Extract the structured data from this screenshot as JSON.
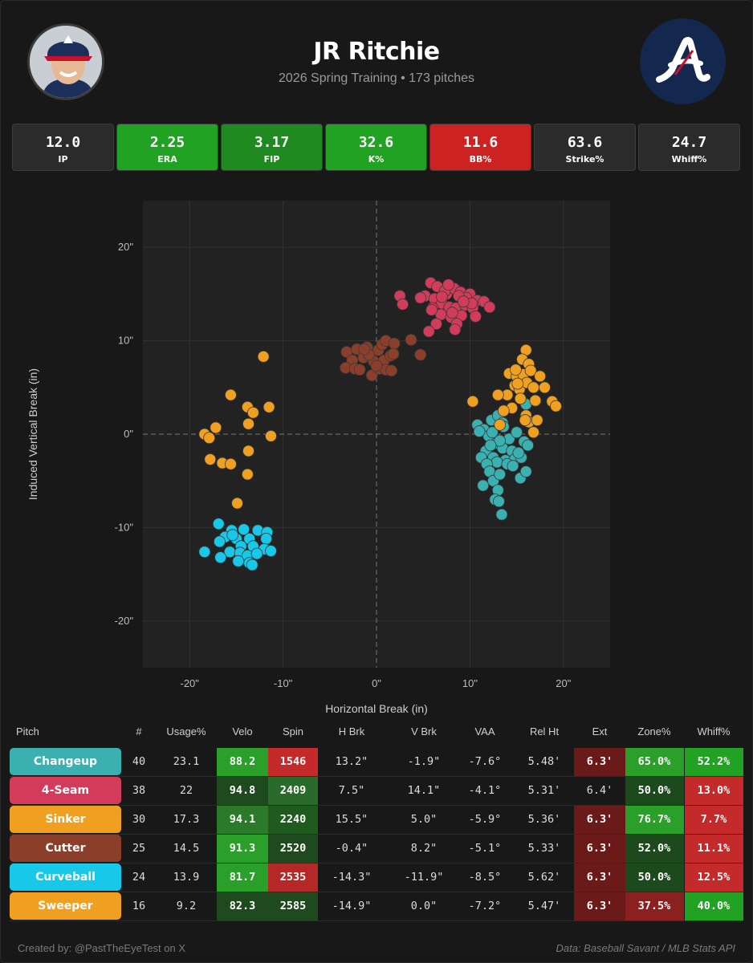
{
  "header": {
    "player_name": "JR Ritchie",
    "subtitle": "2026 Spring Training • 173 pitches"
  },
  "stats": [
    {
      "value": "12.0",
      "label": "IP",
      "color": "#2b2b2b"
    },
    {
      "value": "2.25",
      "label": "ERA",
      "color": "#22a222"
    },
    {
      "value": "3.17",
      "label": "FIP",
      "color": "#1f8a1f"
    },
    {
      "value": "32.6",
      "label": "K%",
      "color": "#22a222"
    },
    {
      "value": "11.6",
      "label": "BB%",
      "color": "#cc2222"
    },
    {
      "value": "63.6",
      "label": "Strike%",
      "color": "#2b2b2b"
    },
    {
      "value": "24.7",
      "label": "Whiff%",
      "color": "#2b2b2b"
    }
  ],
  "chart_data": {
    "type": "scatter",
    "title": "",
    "xlabel": "Horizontal Break (in)",
    "ylabel": "Induced Vertical Break (in)",
    "xlim": [
      -25,
      25
    ],
    "ylim": [
      -25,
      25
    ],
    "xticks": [
      "-20\"",
      "-10\"",
      "0\"",
      "10\"",
      "20\""
    ],
    "yticks": [
      "20\"",
      "10\"",
      "0\"",
      "-10\"",
      "-20\""
    ],
    "grid": true,
    "series": [
      {
        "pitch": "Changeup",
        "color": "#3ab0b0",
        "points": [
          [
            10.8,
            1.0
          ],
          [
            11.5,
            0.5
          ],
          [
            12.3,
            1.5
          ],
          [
            13.0,
            2.0
          ],
          [
            13.5,
            1.2
          ],
          [
            12.0,
            -0.2
          ],
          [
            12.8,
            -1.0
          ],
          [
            11.7,
            -1.8
          ],
          [
            12.5,
            -2.5
          ],
          [
            13.5,
            -1.5
          ],
          [
            14.2,
            -0.5
          ],
          [
            15.0,
            0.2
          ],
          [
            15.8,
            -0.8
          ],
          [
            16.2,
            -1.2
          ],
          [
            14.5,
            -1.8
          ],
          [
            13.8,
            -2.8
          ],
          [
            12.9,
            -3.0
          ],
          [
            11.2,
            -2.5
          ],
          [
            11.8,
            -3.2
          ],
          [
            14.8,
            -2.7
          ],
          [
            15.5,
            -2.5
          ],
          [
            13.2,
            -0.7
          ],
          [
            12.1,
            -4.0
          ],
          [
            11.4,
            -5.5
          ],
          [
            12.5,
            -5.0
          ],
          [
            13.0,
            -6.0
          ],
          [
            12.7,
            -7.0
          ],
          [
            13.1,
            -7.2
          ],
          [
            13.4,
            -8.6
          ],
          [
            15.4,
            -4.7
          ],
          [
            16.0,
            -4.0
          ],
          [
            16.0,
            3.2
          ],
          [
            14.0,
            -3.2
          ],
          [
            12.2,
            -1.2
          ],
          [
            11.0,
            0.3
          ],
          [
            15.2,
            -2.0
          ],
          [
            13.6,
            0.8
          ],
          [
            12.4,
            0.2
          ],
          [
            14.6,
            -3.4
          ],
          [
            13.2,
            -4.3
          ]
        ]
      },
      {
        "pitch": "4-Seam",
        "color": "#d23c5a",
        "points": [
          [
            5.8,
            16.2
          ],
          [
            6.5,
            15.8
          ],
          [
            7.5,
            15.0
          ],
          [
            8.3,
            15.6
          ],
          [
            9.0,
            15.2
          ],
          [
            10.0,
            15.0
          ],
          [
            10.8,
            14.3
          ],
          [
            11.5,
            14.2
          ],
          [
            12.1,
            13.6
          ],
          [
            5.2,
            14.8
          ],
          [
            6.2,
            14.5
          ],
          [
            7.0,
            14.0
          ],
          [
            7.8,
            13.6
          ],
          [
            8.5,
            13.5
          ],
          [
            9.5,
            13.8
          ],
          [
            10.3,
            13.5
          ],
          [
            4.7,
            14.6
          ],
          [
            6.0,
            13.5
          ],
          [
            6.9,
            12.8
          ],
          [
            8.0,
            12.5
          ],
          [
            9.1,
            12.7
          ],
          [
            10.6,
            12.6
          ],
          [
            8.6,
            11.8
          ],
          [
            6.4,
            11.8
          ],
          [
            5.6,
            11.0
          ],
          [
            2.5,
            14.8
          ],
          [
            2.8,
            13.9
          ],
          [
            4.7,
            8.5
          ],
          [
            8.4,
            11.2
          ],
          [
            9.6,
            14.6
          ],
          [
            7.3,
            15.3
          ],
          [
            5.9,
            13.3
          ],
          [
            7.7,
            16.0
          ],
          [
            8.8,
            14.8
          ],
          [
            10.2,
            14.0
          ],
          [
            7.0,
            14.7
          ],
          [
            9.3,
            14.2
          ],
          [
            8.1,
            13.0
          ]
        ]
      },
      {
        "pitch": "Sinker",
        "color": "#f0a020",
        "points": [
          [
            16.0,
            9.0
          ],
          [
            15.6,
            8.0
          ],
          [
            16.3,
            7.5
          ],
          [
            14.2,
            6.5
          ],
          [
            15.0,
            6.2
          ],
          [
            15.7,
            6.4
          ],
          [
            16.5,
            6.8
          ],
          [
            17.5,
            6.2
          ],
          [
            14.8,
            5.2
          ],
          [
            15.3,
            4.8
          ],
          [
            16.1,
            5.5
          ],
          [
            16.8,
            5.0
          ],
          [
            18.0,
            5.0
          ],
          [
            14.0,
            4.2
          ],
          [
            15.4,
            3.8
          ],
          [
            13.0,
            4.2
          ],
          [
            14.5,
            2.8
          ],
          [
            16.0,
            2.0
          ],
          [
            16.3,
            1.3
          ],
          [
            17.2,
            1.5
          ],
          [
            18.8,
            3.5
          ],
          [
            19.2,
            3.0
          ],
          [
            10.3,
            3.5
          ],
          [
            16.8,
            0.2
          ],
          [
            13.2,
            1.0
          ],
          [
            15.1,
            5.4
          ],
          [
            14.9,
            6.9
          ],
          [
            13.6,
            2.5
          ],
          [
            15.9,
            1.5
          ],
          [
            17.0,
            3.6
          ]
        ]
      },
      {
        "pitch": "Cutter",
        "color": "#8b3f2b",
        "points": [
          [
            -3.2,
            8.8
          ],
          [
            -2.1,
            9.1
          ],
          [
            -1.0,
            9.3
          ],
          [
            0.2,
            9.0
          ],
          [
            0.6,
            9.6
          ],
          [
            1.0,
            10.0
          ],
          [
            1.9,
            9.7
          ],
          [
            -2.6,
            7.9
          ],
          [
            -1.4,
            8.2
          ],
          [
            -0.3,
            7.8
          ],
          [
            0.8,
            7.9
          ],
          [
            1.5,
            8.4
          ],
          [
            1.8,
            8.6
          ],
          [
            -3.3,
            7.1
          ],
          [
            -2.3,
            7.0
          ],
          [
            -0.5,
            6.3
          ],
          [
            0.3,
            7.0
          ],
          [
            1.0,
            6.9
          ],
          [
            1.6,
            6.8
          ],
          [
            3.7,
            10.1
          ],
          [
            4.7,
            8.5
          ],
          [
            -1.8,
            6.9
          ],
          [
            0.0,
            7.3
          ],
          [
            -0.8,
            8.5
          ],
          [
            -1.3,
            9.1
          ]
        ]
      },
      {
        "pitch": "Curveball",
        "color": "#18c8e8",
        "points": [
          [
            -16.9,
            -9.6
          ],
          [
            -15.5,
            -10.3
          ],
          [
            -14.2,
            -10.2
          ],
          [
            -12.7,
            -10.3
          ],
          [
            -11.7,
            -10.5
          ],
          [
            -16.2,
            -11.0
          ],
          [
            -15.0,
            -11.2
          ],
          [
            -13.6,
            -11.2
          ],
          [
            -11.8,
            -11.2
          ],
          [
            -16.8,
            -11.5
          ],
          [
            -14.5,
            -12.0
          ],
          [
            -13.2,
            -12.0
          ],
          [
            -12.0,
            -12.3
          ],
          [
            -11.3,
            -12.5
          ],
          [
            -18.4,
            -12.6
          ],
          [
            -15.7,
            -12.6
          ],
          [
            -14.6,
            -12.7
          ],
          [
            -13.8,
            -13.0
          ],
          [
            -12.8,
            -12.8
          ],
          [
            -16.7,
            -13.2
          ],
          [
            -14.8,
            -13.6
          ],
          [
            -13.6,
            -13.8
          ],
          [
            -13.3,
            -14.0
          ],
          [
            -15.4,
            -10.8
          ]
        ]
      },
      {
        "pitch": "Sweeper",
        "color": "#f0a020",
        "points": [
          [
            -12.1,
            8.3
          ],
          [
            -15.6,
            4.2
          ],
          [
            -13.8,
            2.9
          ],
          [
            -11.5,
            2.9
          ],
          [
            -13.2,
            2.3
          ],
          [
            -13.7,
            1.1
          ],
          [
            -17.2,
            0.7
          ],
          [
            -18.4,
            0.0
          ],
          [
            -17.9,
            -0.4
          ],
          [
            -11.3,
            -0.2
          ],
          [
            -13.7,
            -1.8
          ],
          [
            -17.8,
            -2.7
          ],
          [
            -16.5,
            -3.1
          ],
          [
            -15.6,
            -3.2
          ],
          [
            -13.8,
            -4.3
          ],
          [
            -14.9,
            -7.4
          ]
        ]
      }
    ]
  },
  "table": {
    "headers": [
      "Pitch",
      "#",
      "Usage%",
      "Velo",
      "Spin",
      "H Brk",
      "V Brk",
      "VAA",
      "Rel Ht",
      "Ext",
      "Zone%",
      "Whiff%"
    ],
    "rows": [
      {
        "pitch": "Changeup",
        "color": "#3ab0b0",
        "count": "40",
        "usage": "23.1",
        "velo": "88.2",
        "spin": "1546",
        "hbrk": "13.2\"",
        "vbrk": "-1.9\"",
        "vaa": "-7.6°",
        "relht": "5.48'",
        "ext": "6.3'",
        "zone": "65.0%",
        "whiff": "52.2%",
        "velo_bg": "#2aa02a",
        "spin_bg": "#c42a2a",
        "ext_bg": "#6b1a1a",
        "zone_bg": "#2aa02a",
        "whiff_bg": "#22a222"
      },
      {
        "pitch": "4-Seam",
        "color": "#d23c5a",
        "count": "38",
        "usage": "22",
        "velo": "94.8",
        "spin": "2409",
        "hbrk": "7.5\"",
        "vbrk": "14.1\"",
        "vaa": "-4.1°",
        "relht": "5.31'",
        "ext": "6.4'",
        "zone": "50.0%",
        "whiff": "13.0%",
        "velo_bg": "#1f4a1f",
        "spin_bg": "#2a6a2a",
        "ext_bg": "",
        "zone_bg": "#1c4a1c",
        "whiff_bg": "#c42a2a"
      },
      {
        "pitch": "Sinker",
        "color": "#f0a020",
        "count": "30",
        "usage": "17.3",
        "velo": "94.1",
        "spin": "2240",
        "hbrk": "15.5\"",
        "vbrk": "5.0\"",
        "vaa": "-5.9°",
        "relht": "5.36'",
        "ext": "6.3'",
        "zone": "76.7%",
        "whiff": "7.7%",
        "velo_bg": "#2a7a2a",
        "spin_bg": "#1f5a1f",
        "ext_bg": "#6b1a1a",
        "zone_bg": "#2aa02a",
        "whiff_bg": "#c42a2a"
      },
      {
        "pitch": "Cutter",
        "color": "#8b3f2b",
        "count": "25",
        "usage": "14.5",
        "velo": "91.3",
        "spin": "2520",
        "hbrk": "-0.4\"",
        "vbrk": "8.2\"",
        "vaa": "-5.1°",
        "relht": "5.33'",
        "ext": "6.3'",
        "zone": "52.0%",
        "whiff": "11.1%",
        "velo_bg": "#2aa02a",
        "spin_bg": "#1f4a1f",
        "ext_bg": "#6b1a1a",
        "zone_bg": "#1c4a1c",
        "whiff_bg": "#c42a2a"
      },
      {
        "pitch": "Curveball",
        "color": "#18c8e8",
        "count": "24",
        "usage": "13.9",
        "velo": "81.7",
        "spin": "2535",
        "hbrk": "-14.3\"",
        "vbrk": "-11.9\"",
        "vaa": "-8.5°",
        "relht": "5.62'",
        "ext": "6.3'",
        "zone": "50.0%",
        "whiff": "12.5%",
        "velo_bg": "#2aa02a",
        "spin_bg": "#b42828",
        "ext_bg": "#6b1a1a",
        "zone_bg": "#1c4a1c",
        "whiff_bg": "#c42a2a"
      },
      {
        "pitch": "Sweeper",
        "color": "#f0a020",
        "count": "16",
        "usage": "9.2",
        "velo": "82.3",
        "spin": "2585",
        "hbrk": "-14.9\"",
        "vbrk": "0.0\"",
        "vaa": "-7.2°",
        "relht": "5.47'",
        "ext": "6.3'",
        "zone": "37.5%",
        "whiff": "40.0%",
        "velo_bg": "#1f4a1f",
        "spin_bg": "#1f4a1f",
        "ext_bg": "#6b1a1a",
        "zone_bg": "#8a2020",
        "whiff_bg": "#22a222"
      }
    ]
  },
  "footer": {
    "credit": "Created by: @PastTheEyeTest on X",
    "source": "Data: Baseball Savant / MLB Stats API"
  }
}
